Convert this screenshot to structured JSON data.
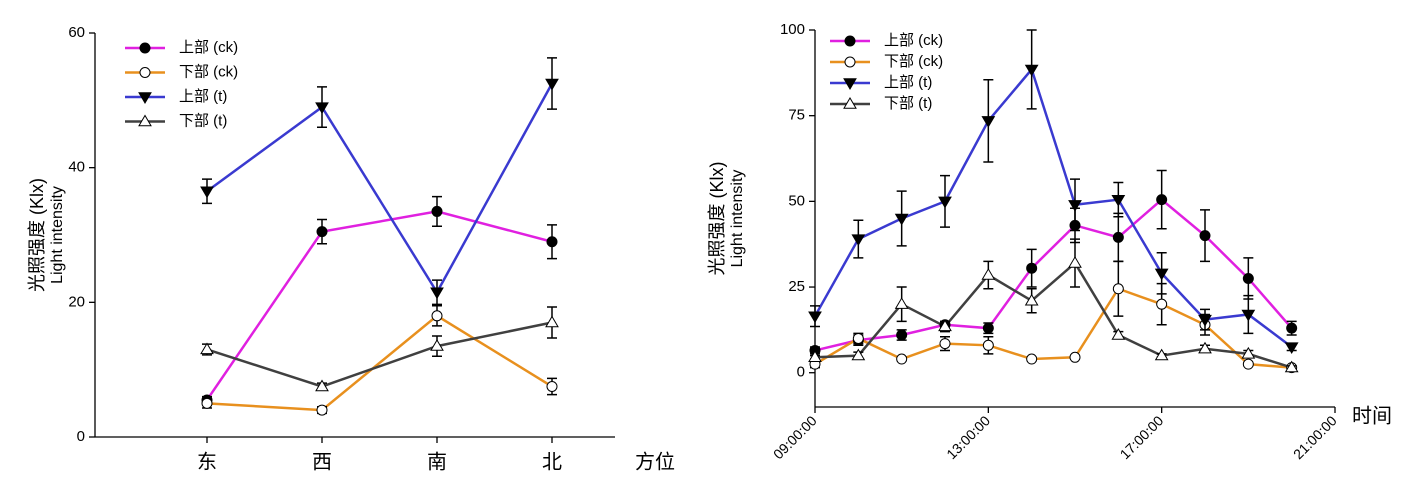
{
  "chart_data": [
    {
      "type": "line",
      "x_label": "方位",
      "y_label": [
        "光照强度 (Klx)",
        "Light intensity"
      ],
      "categories": [
        "东",
        "西",
        "南",
        "北"
      ],
      "ylim": [
        0,
        60
      ],
      "yticks": [
        0,
        20,
        40,
        60
      ],
      "legend": "upper-left",
      "series": [
        {
          "name": "上部 (ck)",
          "color": "#e020e0",
          "marker": "circle-filled",
          "values": [
            5.5,
            30.5,
            33.5,
            29
          ],
          "errors": [
            0.5,
            1.8,
            2.2,
            2.5
          ]
        },
        {
          "name": "下部 (ck)",
          "color": "#e8901e",
          "marker": "circle-open",
          "values": [
            5,
            4,
            18,
            7.5
          ],
          "errors": [
            0.7,
            0.5,
            1.5,
            1.2
          ]
        },
        {
          "name": "上部 (t)",
          "color": "#3a3ad0",
          "marker": "triangle-down-filled",
          "values": [
            36.5,
            49,
            21.5,
            52.5
          ],
          "errors": [
            1.8,
            3,
            1.8,
            3.8
          ]
        },
        {
          "name": "下部 (t)",
          "color": "#404040",
          "marker": "triangle-up-open",
          "values": [
            13,
            7.5,
            13.5,
            17
          ],
          "errors": [
            0.8,
            0.5,
            1.5,
            2.3
          ]
        }
      ]
    },
    {
      "type": "line",
      "x_label": "时间",
      "y_label": [
        "光照强度 (Klx)",
        "Light intensity"
      ],
      "x": [
        "09:00:00",
        "10:00:00",
        "11:00:00",
        "12:00:00",
        "13:00:00",
        "14:00:00",
        "15:00:00",
        "16:00:00",
        "17:00:00",
        "18:00:00",
        "19:00:00",
        "20:00:00"
      ],
      "xlim": [
        "09:00:00",
        "21:00:00"
      ],
      "xticks": [
        "09:00:00",
        "13:00:00",
        "17:00:00",
        "21:00:00"
      ],
      "ylim": [
        -10,
        100
      ],
      "yticks": [
        0,
        25,
        50,
        75,
        100
      ],
      "legend": "upper-left",
      "series": [
        {
          "name": "上部 (ck)",
          "color": "#e020e0",
          "marker": "circle-filled",
          "values": [
            6.5,
            9.5,
            11,
            14,
            13,
            30.5,
            43,
            39.5,
            50.5,
            40,
            27.5,
            13
          ],
          "errors": [
            1,
            1.5,
            1.5,
            1,
            1.5,
            5.5,
            5,
            7,
            8.5,
            7.5,
            6,
            2
          ]
        },
        {
          "name": "下部 (ck)",
          "color": "#e8901e",
          "marker": "circle-open",
          "values": [
            2.5,
            10,
            4,
            8.5,
            8,
            4,
            4.5,
            24.5,
            20,
            14,
            2.5,
            1.5
          ],
          "errors": [
            1,
            1.5,
            0.5,
            2,
            2.5,
            0.5,
            0.5,
            8,
            6,
            3,
            0.5,
            0.5
          ]
        },
        {
          "name": "上部 (t)",
          "color": "#3a3ad0",
          "marker": "triangle-down-filled",
          "values": [
            16.5,
            39,
            45,
            50,
            73.5,
            88.5,
            49,
            50.5,
            29,
            15.5,
            17,
            7.5
          ],
          "errors": [
            3,
            5.5,
            8,
            7.5,
            12,
            11.5,
            7.5,
            5,
            6,
            3,
            5.5,
            1
          ]
        },
        {
          "name": "下部 (t)",
          "color": "#404040",
          "marker": "triangle-up-open",
          "values": [
            4.5,
            5,
            20,
            13.5,
            28.5,
            21,
            32,
            11,
            5,
            7,
            5.5,
            1.5
          ],
          "errors": [
            0.5,
            1,
            5,
            1.5,
            4,
            3.5,
            7,
            1,
            0.5,
            1,
            1,
            0.5
          ]
        }
      ]
    }
  ]
}
